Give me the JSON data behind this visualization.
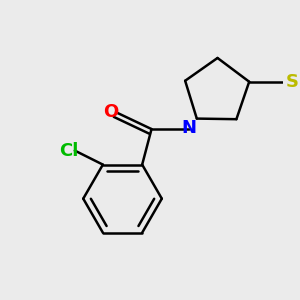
{
  "bg_color": "#ebebeb",
  "atom_colors": {
    "O": "#ff0000",
    "N": "#0000ff",
    "S": "#bbbb00",
    "Cl": "#00bb00",
    "C": "#000000"
  },
  "bond_lw": 1.8,
  "font_size": 13,
  "figsize": [
    3.0,
    3.0
  ],
  "dpi": 100,
  "xlim": [
    -1.4,
    1.6
  ],
  "ylim": [
    -1.5,
    1.3
  ]
}
